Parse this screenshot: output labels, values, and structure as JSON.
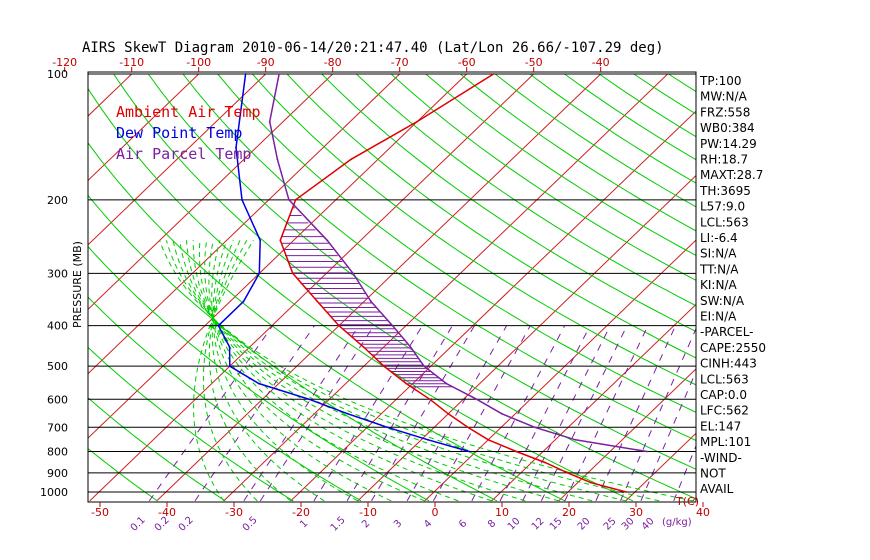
{
  "chart_data": {
    "type": "skewt",
    "title": "AIRS SkewT Diagram 2010-06-14/20:21:47.40 (Lat/Lon 26.66/-107.29 deg)",
    "ylabel": "PRESSURE (MB)",
    "xlabel": "T(C)",
    "mixing_ratio_unit": "(g/kg)",
    "pressure_ticks": [
      100,
      200,
      300,
      400,
      500,
      600,
      700,
      800,
      900,
      1000
    ],
    "pressure_range": [
      100,
      1050
    ],
    "temp_ticks_top": [
      -120,
      -110,
      -100,
      -90,
      -80,
      -70,
      -60,
      -50,
      -40
    ],
    "temp_ticks_bottom": [
      -50,
      -40,
      -30,
      -20,
      -10,
      0,
      10,
      20,
      30,
      40
    ],
    "mixing_ratio_labels": [
      "0.1",
      "0.2",
      "0.2",
      "0.5",
      "1",
      "1.5",
      "2",
      "3",
      "4",
      "6",
      "8",
      "10",
      "12",
      "15",
      "20",
      "25",
      "30",
      "40"
    ],
    "legend": [
      {
        "name": "Ambient Air Temp",
        "color": "#e00000"
      },
      {
        "name": "Dew Point Temp",
        "color": "#0000e0"
      },
      {
        "name": "Air Parcel Temp",
        "color": "#7a1fa2"
      }
    ],
    "series": [
      {
        "name": "Ambient Air Temp",
        "color": "#e00000",
        "points": [
          [
            1000,
            28.7
          ],
          [
            950,
            22
          ],
          [
            900,
            17
          ],
          [
            850,
            12
          ],
          [
            800,
            6
          ],
          [
            750,
            0
          ],
          [
            700,
            -5
          ],
          [
            650,
            -10
          ],
          [
            600,
            -15
          ],
          [
            550,
            -21
          ],
          [
            500,
            -27
          ],
          [
            450,
            -33
          ],
          [
            400,
            -40
          ],
          [
            350,
            -47
          ],
          [
            300,
            -55
          ],
          [
            250,
            -62
          ],
          [
            200,
            -66
          ],
          [
            160,
            -64
          ],
          [
            130,
            -60
          ],
          [
            100,
            -56
          ]
        ]
      },
      {
        "name": "Dew Point Temp",
        "color": "#0000e0",
        "points": [
          [
            800,
            -1
          ],
          [
            750,
            -9
          ],
          [
            700,
            -17
          ],
          [
            650,
            -25
          ],
          [
            600,
            -33
          ],
          [
            550,
            -43
          ],
          [
            500,
            -50
          ],
          [
            450,
            -53
          ],
          [
            400,
            -58
          ],
          [
            350,
            -58
          ],
          [
            300,
            -60
          ],
          [
            250,
            -65
          ],
          [
            200,
            -74
          ],
          [
            150,
            -83
          ],
          [
            100,
            -93
          ]
        ]
      },
      {
        "name": "Air Parcel Temp",
        "color": "#7a1fa2",
        "points": [
          [
            800,
            25.5
          ],
          [
            750,
            13
          ],
          [
            700,
            5
          ],
          [
            650,
            -2
          ],
          [
            600,
            -8
          ],
          [
            550,
            -15
          ],
          [
            500,
            -21
          ],
          [
            450,
            -26
          ],
          [
            400,
            -32
          ],
          [
            350,
            -39
          ],
          [
            300,
            -46
          ],
          [
            250,
            -55
          ],
          [
            200,
            -67
          ],
          [
            160,
            -75
          ],
          [
            130,
            -82
          ],
          [
            100,
            -88
          ]
        ]
      }
    ],
    "stats": [
      "TP:100",
      "MW:N/A",
      "FRZ:558",
      "WB0:384",
      "PW:14.29",
      "RH:18.7",
      "MAXT:28.7",
      "TH:3695",
      "L57:9.0",
      "LCL:563",
      "LI:-6.4",
      "SI:N/A",
      "TT:N/A",
      "KI:N/A",
      "SW:N/A",
      "EI:N/A",
      "-PARCEL-",
      "CAPE:2550",
      "CINH:443",
      "LCL:563",
      "CAP:0.0",
      "LFC:562",
      "EL:147",
      "MPL:101",
      "-WIND-",
      "NOT",
      "AVAIL"
    ],
    "grid": true
  },
  "colors": {
    "temp": "#e00000",
    "dewpoint": "#0000e0",
    "parcel": "#7a1fa2",
    "dry_adiabat": "#00cc00",
    "isotherm": "#cc2020",
    "mixing_ratio": "#7a1fa2",
    "moist_adiabat": "#00cc00"
  }
}
